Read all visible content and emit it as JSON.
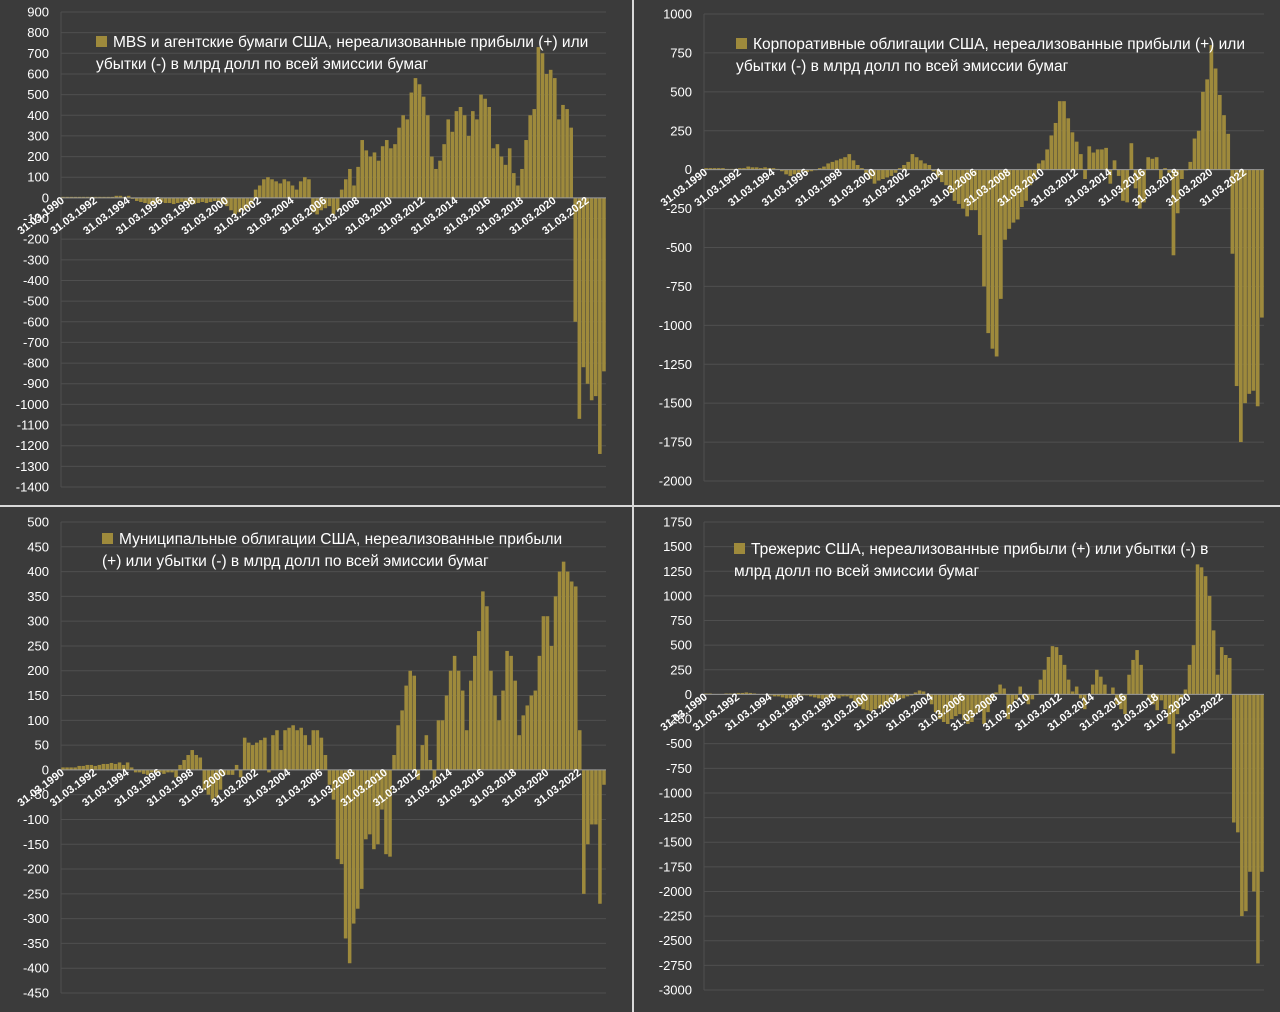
{
  "colors": {
    "background": "#3b3b3b",
    "bar": "#9e8a3c",
    "grid": "#4f4f4f",
    "text": "#ffffff",
    "divider": "#d9d9d9"
  },
  "chart_data": [
    {
      "type": "bar",
      "legend": "MBS и агентские бумаги США, нереализованные прибыли (+) или убытки (-) в млрд долл по всей эмиссии бумаг",
      "ylim": [
        -1400,
        900
      ],
      "ystep": 100,
      "yticks": [
        "900",
        "800",
        "700",
        "600",
        "500",
        "400",
        "300",
        "200",
        "100",
        "0",
        "-100",
        "-200",
        "-300",
        "-400",
        "-500",
        "-600",
        "-700",
        "-800",
        "-900",
        "-1000",
        "-1100",
        "-1200",
        "-1300",
        "-1400"
      ],
      "xticks": [
        "31.03.1990",
        "31.03.1992",
        "31.03.1994",
        "31.03.1996",
        "31.03.1998",
        "31.03.2000",
        "31.03.2002",
        "31.03.2004",
        "31.03.2006",
        "31.03.2008",
        "31.03.2010",
        "31.03.2012",
        "31.03.2014",
        "31.03.2016",
        "31.03.2018",
        "31.03.2020",
        "31.03.2022"
      ],
      "x_start": "31.03.1990",
      "x_frequency": "quarterly",
      "values": [
        5,
        5,
        5,
        5,
        5,
        5,
        5,
        5,
        5,
        5,
        5,
        5,
        5,
        10,
        10,
        5,
        10,
        -5,
        -15,
        -20,
        -25,
        -30,
        -30,
        -25,
        -20,
        -25,
        -25,
        -30,
        -25,
        -20,
        -20,
        -30,
        -30,
        -25,
        -20,
        -25,
        -20,
        -15,
        -20,
        -30,
        -40,
        -60,
        -80,
        -70,
        -60,
        -50,
        -30,
        40,
        60,
        90,
        100,
        90,
        80,
        70,
        90,
        80,
        60,
        40,
        80,
        100,
        90,
        -70,
        -80,
        -60,
        -50,
        -40,
        -80,
        -60,
        40,
        90,
        140,
        60,
        150,
        280,
        230,
        200,
        220,
        180,
        250,
        280,
        240,
        260,
        340,
        400,
        380,
        510,
        580,
        550,
        490,
        400,
        200,
        140,
        180,
        260,
        380,
        320,
        420,
        440,
        400,
        300,
        420,
        380,
        500,
        480,
        440,
        240,
        260,
        200,
        160,
        240,
        120,
        60,
        140,
        280,
        400,
        430,
        730,
        700,
        600,
        620,
        580,
        380,
        450,
        430,
        340,
        -600,
        -1070,
        -820,
        -900,
        -980,
        -960,
        -1240,
        -840
      ]
    },
    {
      "type": "bar",
      "legend": "Корпоративные облигации США, нереализованные прибыли (+) или убытки (-) в млрд долл по всей эмиссии бумаг",
      "ylim": [
        -2000,
        1000
      ],
      "ystep": 250,
      "yticks": [
        "1000",
        "750",
        "500",
        "250",
        "0",
        "-250",
        "-500",
        "-750",
        "-1000",
        "-1250",
        "-1500",
        "-1750",
        "-2000"
      ],
      "xticks": [
        "31.03.1990",
        "31.03.1992",
        "31.03.1994",
        "31.03.1996",
        "31.03.1998",
        "31.03.2000",
        "31.03.2002",
        "31.03.2004",
        "31.03.2006",
        "31.03.2008",
        "31.03.2010",
        "31.03.2012",
        "31.03.2014",
        "31.03.2016",
        "31.03.2018",
        "31.03.2020",
        "31.03.2022"
      ],
      "x_start": "31.03.1990",
      "x_frequency": "quarterly",
      "values": [
        10,
        10,
        10,
        10,
        10,
        5,
        5,
        5,
        10,
        10,
        20,
        15,
        15,
        10,
        15,
        10,
        10,
        5,
        -10,
        -30,
        -40,
        -30,
        -20,
        -10,
        -15,
        -10,
        0,
        10,
        20,
        40,
        50,
        60,
        70,
        80,
        100,
        60,
        30,
        10,
        -20,
        -60,
        -90,
        -70,
        -60,
        -50,
        -40,
        -20,
        10,
        30,
        50,
        100,
        80,
        60,
        40,
        30,
        -10,
        -50,
        -80,
        -100,
        -150,
        -200,
        -220,
        -250,
        -300,
        -260,
        -260,
        -420,
        -750,
        -1050,
        -1150,
        -1200,
        -830,
        -450,
        -380,
        -340,
        -320,
        -240,
        -200,
        -100,
        -60,
        40,
        60,
        130,
        220,
        300,
        440,
        440,
        330,
        240,
        180,
        100,
        -60,
        150,
        110,
        130,
        130,
        140,
        -90,
        60,
        -40,
        -200,
        -210,
        170,
        -120,
        -250,
        -210,
        80,
        70,
        80,
        -60,
        10,
        -20,
        -550,
        -280,
        -60,
        0,
        50,
        200,
        250,
        500,
        580,
        800,
        650,
        480,
        350,
        230,
        -540,
        -1390,
        -1750,
        -1500,
        -1440,
        -1420,
        -1520,
        -950
      ]
    },
    {
      "type": "bar",
      "legend": "Муниципальные облигации США, нереализованные прибыли (+) или убытки (-) в млрд долл по всей эмиссии бумаг",
      "ylim": [
        -450,
        500
      ],
      "ystep": 50,
      "yticks": [
        "500",
        "450",
        "400",
        "350",
        "300",
        "250",
        "200",
        "150",
        "100",
        "50",
        "0",
        "-50",
        "-100",
        "-150",
        "-200",
        "-250",
        "-300",
        "-350",
        "-400",
        "-450"
      ],
      "xticks": [
        "31.03.1990",
        "31.03.1992",
        "31.03.1994",
        "31.03.1996",
        "31.03.1998",
        "31.03.2000",
        "31.03.2002",
        "31.03.2004",
        "31.03.2006",
        "31.03.2008",
        "31.03.2010",
        "31.03.2012",
        "31.03.2014",
        "31.03.2016",
        "31.03.2018",
        "31.03.2020",
        "31.03.2022"
      ],
      "x_start": "31.03.1990",
      "x_frequency": "quarterly",
      "values": [
        5,
        5,
        5,
        5,
        8,
        8,
        10,
        10,
        8,
        10,
        12,
        12,
        14,
        12,
        15,
        10,
        15,
        5,
        -5,
        -5,
        -8,
        -10,
        -5,
        -5,
        -5,
        -8,
        -5,
        -5,
        -15,
        10,
        20,
        30,
        40,
        30,
        25,
        -40,
        -50,
        -60,
        -55,
        -40,
        -10,
        -10,
        -10,
        10,
        -15,
        65,
        55,
        50,
        55,
        60,
        65,
        -5,
        70,
        80,
        40,
        80,
        85,
        90,
        80,
        85,
        70,
        50,
        80,
        80,
        65,
        30,
        -30,
        -60,
        -180,
        -190,
        -340,
        -390,
        -310,
        -280,
        -240,
        -140,
        -130,
        -160,
        -150,
        -80,
        -170,
        -175,
        30,
        90,
        120,
        170,
        200,
        190,
        -20,
        50,
        70,
        20,
        -20,
        100,
        100,
        150,
        200,
        230,
        200,
        160,
        80,
        180,
        230,
        280,
        360,
        330,
        200,
        150,
        100,
        160,
        240,
        230,
        180,
        70,
        110,
        130,
        150,
        160,
        230,
        310,
        310,
        250,
        350,
        400,
        420,
        400,
        380,
        370,
        80,
        -250,
        -150,
        -110,
        -110,
        -270,
        -30
      ]
    },
    {
      "type": "bar",
      "legend": "Трежерис США, нереализованные прибыли (+) или убытки (-) в млрд долл по всей эмиссии бумаг",
      "ylim": [
        -3000,
        1750
      ],
      "ystep": 250,
      "yticks": [
        "1750",
        "1500",
        "1250",
        "1000",
        "750",
        "500",
        "250",
        "0",
        "-250",
        "-500",
        "-750",
        "-1000",
        "-1250",
        "-1500",
        "-1750",
        "-2000",
        "-2250",
        "-2500",
        "-2750",
        "-3000"
      ],
      "xticks": [
        "31.03.1990",
        "31.03.1992",
        "31.03.1994",
        "31.03.1996",
        "31.03.1998",
        "31.03.2000",
        "31.03.2002",
        "31.03.2004",
        "31.03.2006",
        "31.03.2008",
        "31.03.2010",
        "31.03.2012",
        "31.03.2014",
        "31.03.2016",
        "31.03.2018",
        "31.03.2020",
        "31.03.2022"
      ],
      "x_start": "31.03.1990",
      "x_frequency": "quarterly",
      "values": [
        10,
        10,
        5,
        5,
        5,
        10,
        10,
        10,
        15,
        15,
        20,
        15,
        10,
        5,
        5,
        0,
        -10,
        -20,
        -20,
        -30,
        -40,
        -40,
        -30,
        -20,
        -10,
        -10,
        -20,
        -30,
        -40,
        -50,
        -40,
        -30,
        -30,
        -40,
        -20,
        -20,
        -40,
        -80,
        -120,
        -150,
        -160,
        -170,
        -150,
        -140,
        -120,
        -100,
        -80,
        -60,
        -50,
        -40,
        -20,
        -10,
        20,
        40,
        30,
        -20,
        -100,
        -180,
        -250,
        -280,
        -300,
        -250,
        -220,
        -200,
        -260,
        -300,
        -280,
        -200,
        -160,
        -300,
        -180,
        -60,
        20,
        100,
        60,
        -250,
        -100,
        -50,
        80,
        -40,
        -100,
        -50,
        0,
        150,
        250,
        380,
        490,
        480,
        400,
        300,
        150,
        30,
        80,
        -40,
        -150,
        0,
        100,
        250,
        180,
        100,
        0,
        70,
        -100,
        -150,
        -200,
        200,
        350,
        450,
        300,
        0,
        -50,
        -100,
        -160,
        -60,
        -150,
        -300,
        -600,
        -200,
        -50,
        50,
        300,
        500,
        1320,
        1290,
        1200,
        1000,
        650,
        200,
        480,
        400,
        370,
        -1300,
        -1400,
        -2250,
        -2200,
        -1800,
        -2000,
        -2730,
        -1800
      ]
    }
  ]
}
